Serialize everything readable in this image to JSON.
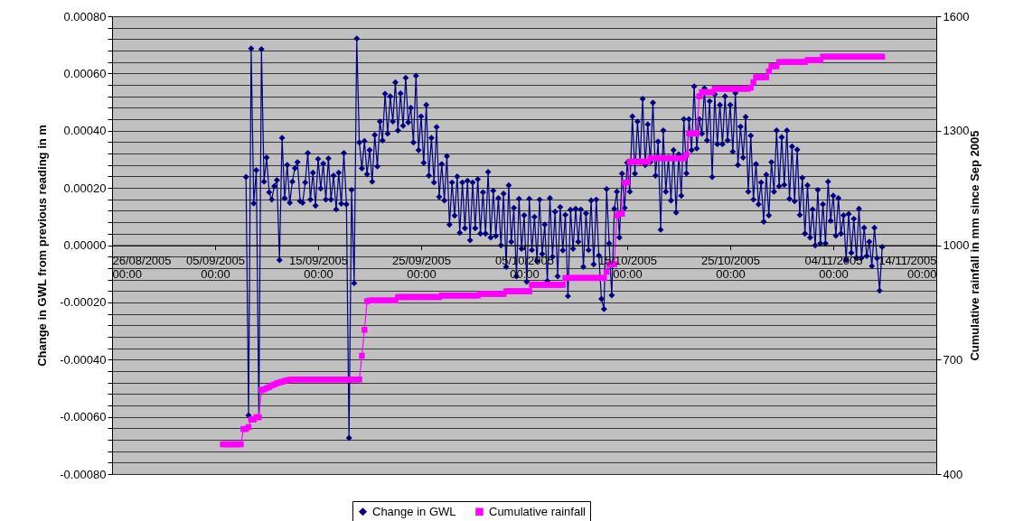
{
  "chart_data": {
    "type": "line",
    "ylabel": "Change in GWL from previous reading in m",
    "y2label": "Cumulative rainfall in mm since Sep 2005",
    "xlim": [
      "2005-08-26T00:00",
      "2005-11-14T00:00"
    ],
    "xticks": [
      {
        "value": "2005-08-26T00:00",
        "label": "26/08/2005 00:00"
      },
      {
        "value": "2005-09-05T00:00",
        "label": "05/09/2005 00:00"
      },
      {
        "value": "2005-09-15T00:00",
        "label": "15/09/2005 00:00"
      },
      {
        "value": "2005-09-25T00:00",
        "label": "25/09/2005 00:00"
      },
      {
        "value": "2005-10-05T00:00",
        "label": "05/10/2005 00:00"
      },
      {
        "value": "2005-10-15T00:00",
        "label": "15/10/2005 00:00"
      },
      {
        "value": "2005-10-25T00:00",
        "label": "25/10/2005 00:00"
      },
      {
        "value": "2005-11-04T00:00",
        "label": "04/11/2005 00:00"
      },
      {
        "value": "2005-11-14T00:00",
        "label": "14/11/2005 00:00"
      }
    ],
    "ylim": [
      -0.0008,
      0.0008
    ],
    "yticks": [
      {
        "value": -0.0008,
        "label": "-0.00080"
      },
      {
        "value": -0.00076,
        "label": null
      },
      {
        "value": -0.00072,
        "label": null
      },
      {
        "value": -0.00068,
        "label": null
      },
      {
        "value": -0.00064,
        "label": null
      },
      {
        "value": -0.0006,
        "label": "-0.00060"
      },
      {
        "value": -0.00056,
        "label": null
      },
      {
        "value": -0.00052,
        "label": null
      },
      {
        "value": -0.00048,
        "label": null
      },
      {
        "value": -0.00044,
        "label": null
      },
      {
        "value": -0.0004,
        "label": "-0.00040"
      },
      {
        "value": -0.00036,
        "label": null
      },
      {
        "value": -0.00032,
        "label": null
      },
      {
        "value": -0.00028,
        "label": null
      },
      {
        "value": -0.00024,
        "label": null
      },
      {
        "value": -0.0002,
        "label": "-0.00020"
      },
      {
        "value": -0.00016,
        "label": null
      },
      {
        "value": -0.00012,
        "label": null
      },
      {
        "value": -8e-05,
        "label": null
      },
      {
        "value": -4e-05,
        "label": null
      },
      {
        "value": 0,
        "label": "0.00000"
      },
      {
        "value": 4e-05,
        "label": null
      },
      {
        "value": 8e-05,
        "label": null
      },
      {
        "value": 0.00012,
        "label": null
      },
      {
        "value": 0.00016,
        "label": null
      },
      {
        "value": 0.0002,
        "label": "0.00020"
      },
      {
        "value": 0.00024,
        "label": null
      },
      {
        "value": 0.00028,
        "label": null
      },
      {
        "value": 0.00032,
        "label": null
      },
      {
        "value": 0.00036,
        "label": null
      },
      {
        "value": 0.0004,
        "label": "0.00040"
      },
      {
        "value": 0.00044,
        "label": null
      },
      {
        "value": 0.00048,
        "label": null
      },
      {
        "value": 0.00052,
        "label": null
      },
      {
        "value": 0.00056,
        "label": null
      },
      {
        "value": 0.0006,
        "label": "0.00060"
      },
      {
        "value": 0.00064,
        "label": null
      },
      {
        "value": 0.00068,
        "label": null
      },
      {
        "value": 0.00072,
        "label": null
      },
      {
        "value": 0.00076,
        "label": null
      },
      {
        "value": 0.0008,
        "label": "0.00080"
      }
    ],
    "y2lim": [
      400,
      1600
    ],
    "y2ticks": [
      400,
      700,
      1000,
      1300,
      1600
    ],
    "grid": "y",
    "legend": "bottom",
    "series": [
      {
        "name": "Change in GWL",
        "color": "#000080",
        "marker": "diamond",
        "x": [
          "2005-09-08T00:00",
          "2005-09-08T06:00",
          "2005-09-08T12:00",
          "2005-09-08T18:00",
          "2005-09-09T00:00",
          "2005-09-09T06:00",
          "2005-09-09T12:00",
          "2005-09-09T18:00",
          "2005-09-10T00:00",
          "2005-09-10T06:00",
          "2005-09-10T12:00",
          "2005-09-10T18:00",
          "2005-09-11T00:00",
          "2005-09-11T06:00",
          "2005-09-11T12:00",
          "2005-09-11T18:00",
          "2005-09-12T00:00",
          "2005-09-12T06:00",
          "2005-09-12T12:00",
          "2005-09-12T18:00",
          "2005-09-13T00:00",
          "2005-09-13T06:00",
          "2005-09-13T12:00",
          "2005-09-13T18:00",
          "2005-09-14T00:00",
          "2005-09-14T06:00",
          "2005-09-14T12:00",
          "2005-09-14T18:00",
          "2005-09-15T00:00",
          "2005-09-15T06:00",
          "2005-09-15T12:00",
          "2005-09-15T18:00",
          "2005-09-16T00:00",
          "2005-09-16T06:00",
          "2005-09-16T12:00",
          "2005-09-16T18:00",
          "2005-09-17T00:00",
          "2005-09-17T06:00",
          "2005-09-17T12:00",
          "2005-09-17T18:00",
          "2005-09-18T00:00",
          "2005-09-18T06:00",
          "2005-09-18T12:00",
          "2005-09-18T18:00",
          "2005-09-19T00:00",
          "2005-09-19T06:00",
          "2005-09-19T12:00",
          "2005-09-19T18:00",
          "2005-09-20T00:00",
          "2005-09-20T06:00",
          "2005-09-20T12:00",
          "2005-09-20T18:00",
          "2005-09-21T00:00",
          "2005-09-21T06:00",
          "2005-09-21T12:00",
          "2005-09-21T18:00",
          "2005-09-22T00:00",
          "2005-09-22T06:00",
          "2005-09-22T12:00",
          "2005-09-22T18:00",
          "2005-09-23T00:00",
          "2005-09-23T06:00",
          "2005-09-23T12:00",
          "2005-09-23T18:00",
          "2005-09-24T00:00",
          "2005-09-24T06:00",
          "2005-09-24T12:00",
          "2005-09-24T18:00",
          "2005-09-25T00:00",
          "2005-09-25T06:00",
          "2005-09-25T12:00",
          "2005-09-25T18:00",
          "2005-09-26T00:00",
          "2005-09-26T06:00",
          "2005-09-26T12:00",
          "2005-09-26T18:00",
          "2005-09-27T00:00",
          "2005-09-27T06:00",
          "2005-09-27T12:00",
          "2005-09-27T18:00",
          "2005-09-28T00:00",
          "2005-09-28T06:00",
          "2005-09-28T12:00",
          "2005-09-28T18:00",
          "2005-09-29T00:00",
          "2005-09-29T06:00",
          "2005-09-29T12:00",
          "2005-09-29T18:00",
          "2005-09-30T00:00",
          "2005-09-30T06:00",
          "2005-09-30T12:00",
          "2005-09-30T18:00",
          "2005-10-01T00:00",
          "2005-10-01T06:00",
          "2005-10-01T12:00",
          "2005-10-01T18:00",
          "2005-10-02T00:00",
          "2005-10-02T06:00",
          "2005-10-02T12:00",
          "2005-10-02T18:00",
          "2005-10-03T00:00",
          "2005-10-03T06:00",
          "2005-10-03T12:00",
          "2005-10-03T18:00",
          "2005-10-04T00:00",
          "2005-10-04T06:00",
          "2005-10-04T12:00",
          "2005-10-04T18:00",
          "2005-10-05T00:00",
          "2005-10-05T06:00",
          "2005-10-05T12:00",
          "2005-10-05T18:00",
          "2005-10-06T00:00",
          "2005-10-06T06:00",
          "2005-10-06T12:00",
          "2005-10-06T18:00",
          "2005-10-07T00:00",
          "2005-10-07T06:00",
          "2005-10-07T12:00",
          "2005-10-07T18:00",
          "2005-10-08T00:00",
          "2005-10-08T06:00",
          "2005-10-08T12:00",
          "2005-10-08T18:00",
          "2005-10-09T00:00",
          "2005-10-09T06:00",
          "2005-10-09T12:00",
          "2005-10-09T18:00",
          "2005-10-10T00:00",
          "2005-10-10T06:00",
          "2005-10-10T12:00",
          "2005-10-10T18:00",
          "2005-10-11T00:00",
          "2005-10-11T06:00",
          "2005-10-11T12:00",
          "2005-10-11T18:00",
          "2005-10-12T00:00",
          "2005-10-12T06:00",
          "2005-10-12T12:00",
          "2005-10-12T18:00",
          "2005-10-13T00:00",
          "2005-10-13T06:00",
          "2005-10-13T12:00",
          "2005-10-13T18:00",
          "2005-10-14T00:00",
          "2005-10-14T06:00",
          "2005-10-14T12:00",
          "2005-10-14T18:00",
          "2005-10-15T00:00",
          "2005-10-15T06:00",
          "2005-10-15T12:00",
          "2005-10-15T18:00",
          "2005-10-16T00:00",
          "2005-10-16T06:00",
          "2005-10-16T12:00",
          "2005-10-16T18:00",
          "2005-10-17T00:00",
          "2005-10-17T06:00",
          "2005-10-17T12:00",
          "2005-10-17T18:00",
          "2005-10-18T00:00",
          "2005-10-18T06:00",
          "2005-10-18T12:00",
          "2005-10-18T18:00",
          "2005-10-19T00:00",
          "2005-10-19T06:00",
          "2005-10-19T12:00",
          "2005-10-19T18:00",
          "2005-10-20T00:00",
          "2005-10-20T06:00",
          "2005-10-20T12:00",
          "2005-10-20T18:00",
          "2005-10-21T00:00",
          "2005-10-21T06:00",
          "2005-10-21T12:00",
          "2005-10-21T18:00",
          "2005-10-22T00:00",
          "2005-10-22T06:00",
          "2005-10-22T12:00",
          "2005-10-22T18:00",
          "2005-10-23T00:00",
          "2005-10-23T06:00",
          "2005-10-23T12:00",
          "2005-10-23T18:00",
          "2005-10-24T00:00",
          "2005-10-24T06:00",
          "2005-10-24T12:00",
          "2005-10-24T18:00",
          "2005-10-25T00:00",
          "2005-10-25T06:00",
          "2005-10-25T12:00",
          "2005-10-25T18:00",
          "2005-10-26T00:00",
          "2005-10-26T06:00",
          "2005-10-26T12:00",
          "2005-10-26T18:00",
          "2005-10-27T00:00",
          "2005-10-27T06:00",
          "2005-10-27T12:00",
          "2005-10-27T18:00",
          "2005-10-28T00:00",
          "2005-10-28T06:00",
          "2005-10-28T12:00",
          "2005-10-28T18:00",
          "2005-10-29T00:00",
          "2005-10-29T06:00",
          "2005-10-29T12:00",
          "2005-10-29T18:00",
          "2005-10-30T00:00",
          "2005-10-30T06:00",
          "2005-10-30T12:00",
          "2005-10-30T18:00",
          "2005-10-31T00:00",
          "2005-10-31T06:00",
          "2005-10-31T12:00",
          "2005-10-31T18:00",
          "2005-11-01T00:00",
          "2005-11-01T06:00",
          "2005-11-01T12:00",
          "2005-11-01T18:00",
          "2005-11-02T00:00",
          "2005-11-02T06:00",
          "2005-11-02T12:00",
          "2005-11-02T18:00",
          "2005-11-03T00:00",
          "2005-11-03T06:00",
          "2005-11-03T12:00",
          "2005-11-03T18:00",
          "2005-11-04T00:00",
          "2005-11-04T06:00",
          "2005-11-04T12:00",
          "2005-11-04T18:00",
          "2005-11-05T00:00",
          "2005-11-05T06:00",
          "2005-11-05T12:00",
          "2005-11-05T18:00",
          "2005-11-06T00:00",
          "2005-11-06T06:00",
          "2005-11-06T12:00",
          "2005-11-06T18:00",
          "2005-11-07T00:00",
          "2005-11-07T06:00",
          "2005-11-07T12:00",
          "2005-11-07T18:00",
          "2005-11-08T00:00",
          "2005-11-08T06:00",
          "2005-11-08T12:00",
          "2005-11-08T18:00"
        ],
        "values": [
          0.000238,
          -0.000595,
          0.000687,
          0.000146,
          0.000262,
          -0.000602,
          0.000685,
          0.000222,
          0.000306,
          0.000185,
          0.000159,
          0.000206,
          0.000227,
          -5.2e-05,
          0.000375,
          0.000164,
          0.00028,
          0.000148,
          0.000222,
          0.000269,
          0.00029,
          0.000154,
          0.000148,
          0.000219,
          0.000322,
          0.000159,
          0.000253,
          0.000138,
          0.000301,
          0.000198,
          0.000285,
          0.000159,
          0.000303,
          0.000159,
          0.000243,
          0.000125,
          0.000253,
          0.000145,
          0.000322,
          0.000143,
          -0.000674,
          0.000193,
          -0.000133,
          0.000722,
          0.000359,
          0.000268,
          0.000364,
          0.000248,
          0.000332,
          0.000222,
          0.000385,
          0.000275,
          0.000432,
          0.000366,
          0.000529,
          0.00039,
          0.00052,
          0.000432,
          0.000569,
          0.000401,
          0.00053,
          0.000417,
          0.000585,
          0.000429,
          0.00048,
          0.000359,
          0.000592,
          0.000332,
          0.00045,
          0.000288,
          0.00049,
          0.000243,
          0.000375,
          0.000219,
          0.000413,
          0.000169,
          0.000283,
          0.000156,
          0.000311,
          7.2e-05,
          0.000219,
          0.000103,
          0.00024,
          4.3e-05,
          0.000219,
          5.9e-05,
          0.000225,
          1.7e-05,
          0.000219,
          5.9e-05,
          0.00023,
          4e-05,
          0.000185,
          4e-05,
          0.000256,
          2.7e-05,
          0.00019,
          3.2e-05,
          0.000164,
          -1e-06,
          0.00018,
          -7.6e-05,
          0.000209,
          1.2e-05,
          0.00013,
          -0.000109,
          0.000162,
          -1.3e-05,
          0.000104,
          -0.000128,
          0.000162,
          -1.7e-05,
          9.9e-05,
          -5.5e-05,
          0.000159,
          -3.1e-05,
          7.2e-05,
          -0.000125,
          0.000164,
          -4.1e-05,
          0.000117,
          -0.000109,
          0.000133,
          -1.8e-05,
          0.000106,
          -0.000178,
          0.000124,
          -1.3e-05,
          0.000127,
          1.2e-05,
          0.000125,
          -7.6e-05,
          0.000111,
          -1.7e-05,
          0.000156,
          -6.7e-05,
          0.000159,
          -3.6e-05,
          -0.000188,
          -0.000223,
          0.000196,
          6e-06,
          -0.000175,
          0.000127,
          0.000187,
          2.7e-05,
          0.00025,
          0.00013,
          0.000288,
          0.000187,
          0.00045,
          0.00025,
          0.000432,
          0.00029,
          0.000511,
          0.00028,
          0.000422,
          0.00029,
          0.000498,
          0.000243,
          0.000362,
          5.4e-05,
          0.000401,
          0.000187,
          0.000306,
          0.000156,
          0.000332,
          0.000114,
          0.000317,
          0.000173,
          0.00044,
          0.000251,
          0.00044,
          0.000332,
          0.000555,
          0.000338,
          0.00044,
          0.00039,
          0.000548,
          0.000366,
          0.000503,
          0.000238,
          0.000527,
          0.000353,
          0.00049,
          0.000353,
          0.00052,
          0.000366,
          0.00049,
          0.000327,
          0.000532,
          0.00028,
          0.000414,
          0.000306,
          0.000448,
          0.000187,
          0.000383,
          0.000159,
          0.000283,
          0.000143,
          0.000219,
          8.2e-05,
          0.000246,
          0.000104,
          0.00029,
          0.000187,
          0.000401,
          0.000206,
          0.000377,
          0.000211,
          0.000401,
          0.000162,
          0.000345,
          0.000154,
          0.000334,
          0.000106,
          0.000235,
          4e-05,
          0.000209,
          2.7e-05,
          0.000125,
          -1e-06,
          0.000193,
          6e-06,
          0.000143,
          6e-06,
          0.000222,
          8.5e-05,
          0.000173,
          3.3e-05,
          0.000164,
          4e-05,
          0.000104,
          -5.2e-05,
          0.000109,
          -2.7e-05,
          9.2e-05,
          -4.4e-05,
          0.000127,
          -4.4e-05,
          6.1e-05,
          -3.8e-05,
          1.2e-05,
          -7.3e-05,
          6.1e-05,
          -4.6e-05,
          -0.000159,
          -6e-06
        ]
      },
      {
        "name": "Cumulative rainfall",
        "color": "#ff00ff",
        "marker": "square",
        "axis": "y2",
        "x": [
          "2005-09-05T18:00",
          "2005-09-06T00:00",
          "2005-09-06T06:00",
          "2005-09-06T12:00",
          "2005-09-06T18:00",
          "2005-09-07T00:00",
          "2005-09-07T06:00",
          "2005-09-07T12:00",
          "2005-09-07T18:00",
          "2005-09-08T00:00",
          "2005-09-08T06:00",
          "2005-09-08T12:00",
          "2005-09-08T18:00",
          "2005-09-09T00:00",
          "2005-09-09T06:00",
          "2005-09-09T12:00",
          "2005-09-09T18:00",
          "2005-09-10T00:00",
          "2005-09-10T06:00",
          "2005-09-10T12:00",
          "2005-09-10T18:00",
          "2005-09-11T00:00",
          "2005-09-11T06:00",
          "2005-09-11T12:00",
          "2005-09-11T18:00",
          "2005-09-12T00:00",
          "2005-09-12T06:00",
          "2005-09-12T12:00",
          "2005-09-12T18:00",
          "2005-09-13T00:00",
          "2005-09-13T06:00",
          "2005-09-13T12:00",
          "2005-09-13T18:00",
          "2005-09-14T00:00",
          "2005-09-14T06:00",
          "2005-09-14T12:00",
          "2005-09-14T18:00",
          "2005-09-15T00:00",
          "2005-09-15T06:00",
          "2005-09-15T12:00",
          "2005-09-15T18:00",
          "2005-09-16T00:00",
          "2005-09-16T06:00",
          "2005-09-16T12:00",
          "2005-09-16T18:00",
          "2005-09-17T00:00",
          "2005-09-17T06:00",
          "2005-09-17T12:00",
          "2005-09-17T18:00",
          "2005-09-18T00:00",
          "2005-09-18T06:00",
          "2005-09-18T12:00",
          "2005-09-18T18:00",
          "2005-09-19T00:00",
          "2005-09-19T06:00",
          "2005-09-19T12:00",
          "2005-09-19T18:00",
          "2005-09-20T00:00",
          "2005-09-20T06:00",
          "2005-09-20T12:00",
          "2005-09-20T18:00",
          "2005-09-21T00:00",
          "2005-09-21T06:00",
          "2005-09-21T12:00",
          "2005-09-21T18:00",
          "2005-09-22T00:00",
          "2005-09-22T06:00",
          "2005-09-22T12:00",
          "2005-09-22T18:00",
          "2005-09-23T00:00",
          "2005-09-23T06:00",
          "2005-09-23T12:00",
          "2005-09-23T18:00",
          "2005-09-24T00:00",
          "2005-09-24T06:00",
          "2005-09-24T12:00",
          "2005-09-24T18:00",
          "2005-09-25T00:00",
          "2005-09-25T06:00",
          "2005-09-25T12:00",
          "2005-09-25T18:00",
          "2005-09-26T00:00",
          "2005-09-26T06:00",
          "2005-09-26T12:00",
          "2005-09-26T18:00",
          "2005-09-27T00:00",
          "2005-09-27T06:00",
          "2005-09-27T12:00",
          "2005-09-27T18:00",
          "2005-09-28T00:00",
          "2005-09-28T06:00",
          "2005-09-28T12:00",
          "2005-09-28T18:00",
          "2005-09-29T00:00",
          "2005-09-29T06:00",
          "2005-09-29T12:00",
          "2005-09-29T18:00",
          "2005-09-30T00:00",
          "2005-09-30T06:00",
          "2005-09-30T12:00",
          "2005-09-30T18:00",
          "2005-10-01T00:00",
          "2005-10-01T06:00",
          "2005-10-01T12:00",
          "2005-10-01T18:00",
          "2005-10-02T00:00",
          "2005-10-02T06:00",
          "2005-10-02T12:00",
          "2005-10-02T18:00",
          "2005-10-03T00:00",
          "2005-10-03T06:00",
          "2005-10-03T12:00",
          "2005-10-03T18:00",
          "2005-10-04T00:00",
          "2005-10-04T06:00",
          "2005-10-04T12:00",
          "2005-10-04T18:00",
          "2005-10-05T00:00",
          "2005-10-05T06:00",
          "2005-10-05T12:00",
          "2005-10-05T18:00",
          "2005-10-06T00:00",
          "2005-10-06T06:00",
          "2005-10-06T12:00",
          "2005-10-06T18:00",
          "2005-10-07T00:00",
          "2005-10-07T06:00",
          "2005-10-07T12:00",
          "2005-10-07T18:00",
          "2005-10-08T00:00",
          "2005-10-08T06:00",
          "2005-10-08T12:00",
          "2005-10-08T18:00",
          "2005-10-09T00:00",
          "2005-10-09T06:00",
          "2005-10-09T12:00",
          "2005-10-09T18:00",
          "2005-10-10T00:00",
          "2005-10-10T06:00",
          "2005-10-10T12:00",
          "2005-10-10T18:00",
          "2005-10-11T00:00",
          "2005-10-11T06:00",
          "2005-10-11T12:00",
          "2005-10-11T18:00",
          "2005-10-12T00:00",
          "2005-10-12T06:00",
          "2005-10-12T12:00",
          "2005-10-12T18:00",
          "2005-10-13T00:00",
          "2005-10-13T06:00",
          "2005-10-13T12:00",
          "2005-10-13T18:00",
          "2005-10-14T00:00",
          "2005-10-14T06:00",
          "2005-10-14T12:00",
          "2005-10-14T18:00",
          "2005-10-15T00:00",
          "2005-10-15T06:00",
          "2005-10-15T12:00",
          "2005-10-15T18:00",
          "2005-10-16T00:00",
          "2005-10-16T06:00",
          "2005-10-16T12:00",
          "2005-10-16T18:00",
          "2005-10-17T00:00",
          "2005-10-17T06:00",
          "2005-10-17T12:00",
          "2005-10-17T18:00",
          "2005-10-18T00:00",
          "2005-10-18T06:00",
          "2005-10-18T12:00",
          "2005-10-18T18:00",
          "2005-10-19T00:00",
          "2005-10-19T06:00",
          "2005-10-19T12:00",
          "2005-10-19T18:00",
          "2005-10-20T00:00",
          "2005-10-20T06:00",
          "2005-10-20T12:00",
          "2005-10-20T18:00",
          "2005-10-21T00:00",
          "2005-10-21T06:00",
          "2005-10-21T12:00",
          "2005-10-21T18:00",
          "2005-10-22T00:00",
          "2005-10-22T06:00",
          "2005-10-22T12:00",
          "2005-10-22T18:00",
          "2005-10-23T00:00",
          "2005-10-23T06:00",
          "2005-10-23T12:00",
          "2005-10-23T18:00",
          "2005-10-24T00:00",
          "2005-10-24T06:00",
          "2005-10-24T12:00",
          "2005-10-24T18:00",
          "2005-10-25T00:00",
          "2005-10-25T06:00",
          "2005-10-25T12:00",
          "2005-10-25T18:00",
          "2005-10-26T00:00",
          "2005-10-26T06:00",
          "2005-10-26T12:00",
          "2005-10-26T18:00",
          "2005-10-27T00:00",
          "2005-10-27T06:00",
          "2005-10-27T12:00",
          "2005-10-27T18:00",
          "2005-10-28T00:00",
          "2005-10-28T06:00",
          "2005-10-28T12:00",
          "2005-10-28T18:00",
          "2005-10-29T00:00",
          "2005-10-29T06:00",
          "2005-10-29T12:00",
          "2005-10-29T18:00",
          "2005-10-30T00:00",
          "2005-10-30T06:00",
          "2005-10-30T12:00",
          "2005-10-30T18:00",
          "2005-10-31T00:00",
          "2005-10-31T06:00",
          "2005-10-31T12:00",
          "2005-10-31T18:00",
          "2005-11-01T00:00",
          "2005-11-01T06:00",
          "2005-11-01T12:00",
          "2005-11-01T18:00",
          "2005-11-02T00:00",
          "2005-11-02T06:00",
          "2005-11-02T12:00",
          "2005-11-02T18:00",
          "2005-11-03T00:00",
          "2005-11-03T06:00",
          "2005-11-03T12:00",
          "2005-11-03T18:00",
          "2005-11-04T00:00",
          "2005-11-04T06:00",
          "2005-11-04T12:00",
          "2005-11-04T18:00",
          "2005-11-05T00:00",
          "2005-11-05T06:00",
          "2005-11-05T12:00",
          "2005-11-05T18:00",
          "2005-11-06T00:00",
          "2005-11-06T06:00",
          "2005-11-06T12:00",
          "2005-11-06T18:00",
          "2005-11-07T00:00",
          "2005-11-07T06:00",
          "2005-11-07T12:00",
          "2005-11-07T18:00",
          "2005-11-08T00:00",
          "2005-11-08T06:00",
          "2005-11-08T12:00",
          "2005-11-08T18:00"
        ],
        "values": [
          478,
          478,
          478,
          478,
          478,
          478,
          478,
          478,
          518,
          518,
          523,
          543,
          543,
          549,
          549,
          620,
          622,
          625,
          628,
          632,
          635,
          638,
          640,
          642,
          644,
          646,
          647,
          648,
          648,
          648,
          648,
          648,
          648,
          648,
          648,
          648,
          648,
          648,
          648,
          648,
          648,
          648,
          648,
          648,
          648,
          648,
          648,
          648,
          648,
          648,
          648,
          648,
          648,
          648,
          710,
          778,
          853,
          855,
          855,
          855,
          855,
          855,
          855,
          855,
          855,
          855,
          855,
          855,
          864,
          864,
          864,
          864,
          864,
          864,
          864,
          864,
          864,
          864,
          864,
          864,
          864,
          864,
          864,
          864,
          864,
          868,
          868,
          868,
          868,
          868,
          868,
          868,
          868,
          868,
          868,
          868,
          868,
          868,
          868,
          868,
          872,
          872,
          872,
          872,
          872,
          872,
          872,
          872,
          872,
          872,
          879,
          879,
          879,
          879,
          879,
          879,
          879,
          879,
          879,
          879,
          896,
          896,
          896,
          896,
          896,
          896,
          896,
          896,
          896,
          896,
          896,
          896,
          896,
          914,
          914,
          914,
          914,
          914,
          914,
          914,
          914,
          914,
          914,
          914,
          914,
          914,
          914,
          914,
          914,
          930,
          950,
          950,
          950,
          1078,
          1082,
          1082,
          1164,
          1164,
          1219,
          1219,
          1219,
          1219,
          1219,
          1219,
          1219,
          1219,
          1228,
          1228,
          1228,
          1228,
          1228,
          1228,
          1228,
          1228,
          1228,
          1228,
          1228,
          1228,
          1228,
          1228,
          1237,
          1293,
          1293,
          1293,
          1293,
          1390,
          1401,
          1401,
          1401,
          1401,
          1401,
          1410,
          1410,
          1410,
          1410,
          1410,
          1410,
          1410,
          1410,
          1410,
          1410,
          1410,
          1410,
          1410,
          1410,
          1413,
          1427,
          1440,
          1440,
          1440,
          1440,
          1440,
          1456,
          1469,
          1469,
          1469,
          1480,
          1480,
          1480,
          1480,
          1480,
          1480,
          1480,
          1480,
          1480,
          1480,
          1480,
          1485,
          1485,
          1485,
          1485,
          1485,
          1485,
          1494,
          1494,
          1494,
          1494,
          1494,
          1494,
          1494,
          1494,
          1494,
          1494,
          1494,
          1494,
          1494,
          1494,
          1494,
          1494,
          1494,
          1494,
          1494,
          1494,
          1494,
          1494,
          1494,
          1494
        ]
      }
    ]
  }
}
